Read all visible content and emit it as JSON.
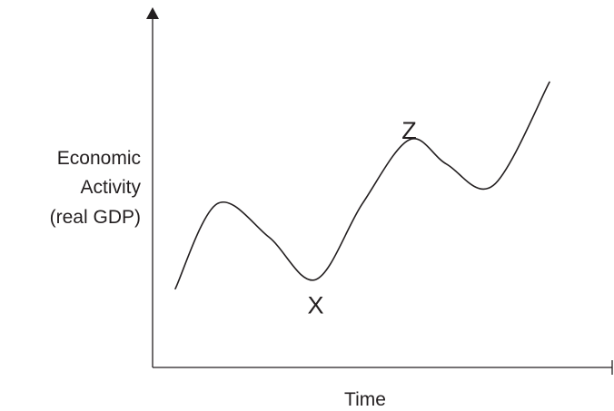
{
  "chart_data": {
    "type": "line",
    "ylabel_lines": [
      "Economic",
      "Activity",
      "(real GDP)"
    ],
    "xlabel": "Time",
    "annotations": [
      {
        "text": "X",
        "x": 3.0,
        "y": 2.7
      },
      {
        "text": "Z",
        "x": 5.0,
        "y": 7.2
      }
    ],
    "series": [
      {
        "x": [
          0.0,
          0.9,
          2.0,
          3.0,
          4.0,
          5.0,
          5.8,
          6.8,
          8.0
        ],
        "values": [
          2.5,
          5.3,
          4.2,
          2.8,
          5.3,
          7.4,
          6.6,
          5.9,
          9.3
        ]
      }
    ],
    "xlim": [
      0,
      8
    ],
    "ylim": [
      0,
      10
    ],
    "grid": false,
    "colors": {
      "ink": "#231f20"
    }
  }
}
